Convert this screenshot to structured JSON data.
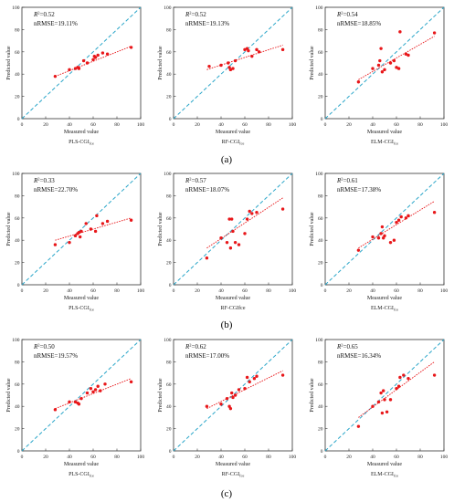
{
  "figure": {
    "rows": [
      {
        "label": "(a)"
      },
      {
        "label": "(b)"
      },
      {
        "label": "(c)"
      }
    ]
  },
  "colors": {
    "points": "#e8171a",
    "fit_line": "#e8171a",
    "one_to_one_line": "#2aa6c9",
    "axes": "#333333"
  },
  "chart_data": [
    {
      "type": "scatter",
      "xlabel": "Measured value",
      "ylabel": "Predicted value",
      "xlim": [
        0,
        100
      ],
      "ylim": [
        0,
        100
      ],
      "xticks": [
        0,
        20,
        40,
        60,
        80,
        100
      ],
      "yticks": [
        0,
        20,
        40,
        60,
        80,
        100
      ],
      "title_model": "PLS-CGI",
      "title_sub": "fce",
      "r2_prefix": "R",
      "r2_value": "=0.52",
      "nrmse": "nRMSE=19.11%",
      "fit": {
        "x": [
          28,
          92
        ],
        "y": [
          38,
          65
        ]
      },
      "points": [
        [
          28,
          38
        ],
        [
          40,
          44
        ],
        [
          45,
          45
        ],
        [
          47,
          46
        ],
        [
          48,
          45
        ],
        [
          52,
          52
        ],
        [
          55,
          50
        ],
        [
          60,
          53
        ],
        [
          61,
          56
        ],
        [
          62,
          55
        ],
        [
          64,
          57
        ],
        [
          68,
          59
        ],
        [
          72,
          58
        ],
        [
          92,
          64
        ]
      ]
    },
    {
      "type": "scatter",
      "xlabel": "Measured value",
      "ylabel": "Predicted value",
      "xlim": [
        0,
        100
      ],
      "ylim": [
        0,
        100
      ],
      "xticks": [
        0,
        20,
        40,
        60,
        80,
        100
      ],
      "yticks": [
        0,
        20,
        40,
        60,
        80,
        100
      ],
      "title_model": "RF-CGI",
      "title_sub": "fce",
      "r2_prefix": "R",
      "r2_value": "=0.52",
      "nrmse": "nRMSE=19.13%",
      "fit": {
        "x": [
          28,
          92
        ],
        "y": [
          44,
          66
        ]
      },
      "points": [
        [
          30,
          47
        ],
        [
          40,
          48
        ],
        [
          46,
          50
        ],
        [
          47,
          46
        ],
        [
          48,
          44
        ],
        [
          50,
          45
        ],
        [
          52,
          52
        ],
        [
          60,
          62
        ],
        [
          62,
          63
        ],
        [
          63,
          61
        ],
        [
          66,
          56
        ],
        [
          70,
          62
        ],
        [
          72,
          60
        ],
        [
          92,
          62
        ]
      ]
    },
    {
      "type": "scatter",
      "xlabel": "Measured value",
      "ylabel": "Predicted value",
      "xlim": [
        0,
        100
      ],
      "ylim": [
        0,
        100
      ],
      "xticks": [
        0,
        20,
        40,
        60,
        80,
        100
      ],
      "yticks": [
        0,
        20,
        40,
        60,
        80,
        100
      ],
      "title_model": "ELM-CGI",
      "title_sub": "fce",
      "r2_prefix": "R",
      "r2_value": "=0.54",
      "nrmse": "nRMSE=18.85%",
      "fit": {
        "x": [
          28,
          92
        ],
        "y": [
          35,
          74
        ]
      },
      "points": [
        [
          28,
          33
        ],
        [
          40,
          45
        ],
        [
          45,
          48
        ],
        [
          46,
          52
        ],
        [
          47,
          63
        ],
        [
          48,
          42
        ],
        [
          50,
          44
        ],
        [
          55,
          50
        ],
        [
          58,
          52
        ],
        [
          60,
          46
        ],
        [
          62,
          45
        ],
        [
          63,
          78
        ],
        [
          68,
          58
        ],
        [
          70,
          57
        ],
        [
          92,
          77
        ]
      ]
    },
    {
      "type": "scatter",
      "xlabel": "Measured value",
      "ylabel": "Predicted value",
      "xlim": [
        0,
        100
      ],
      "ylim": [
        0,
        100
      ],
      "xticks": [
        0,
        20,
        40,
        60,
        80,
        100
      ],
      "yticks": [
        0,
        20,
        40,
        60,
        80,
        100
      ],
      "title_model": "PLS-CGI",
      "title_sub": "fce",
      "r2_prefix": "R",
      "r2_value": "=0.33",
      "nrmse": "nRMSE=22.70%",
      "fit": {
        "x": [
          28,
          92
        ],
        "y": [
          40,
          60
        ]
      },
      "points": [
        [
          28,
          36
        ],
        [
          40,
          38
        ],
        [
          45,
          44
        ],
        [
          47,
          46
        ],
        [
          48,
          47
        ],
        [
          49,
          43
        ],
        [
          50,
          48
        ],
        [
          54,
          55
        ],
        [
          58,
          50
        ],
        [
          62,
          48
        ],
        [
          63,
          62
        ],
        [
          68,
          55
        ],
        [
          72,
          57
        ],
        [
          92,
          58
        ]
      ]
    },
    {
      "type": "scatter",
      "xlabel": "Measured value",
      "ylabel": "Predicted value",
      "xlim": [
        0,
        100
      ],
      "ylim": [
        0,
        100
      ],
      "xticks": [
        0,
        20,
        40,
        60,
        80,
        100
      ],
      "yticks": [
        0,
        20,
        40,
        60,
        80,
        100
      ],
      "title_model": "RF-CGIfce",
      "title_sub": "",
      "r2_prefix": "R",
      "r2_value": "=0.57",
      "nrmse": "nRMSE=18.07%",
      "fit": {
        "x": [
          28,
          92
        ],
        "y": [
          33,
          78
        ]
      },
      "points": [
        [
          28,
          24
        ],
        [
          40,
          42
        ],
        [
          45,
          38
        ],
        [
          47,
          59
        ],
        [
          48,
          33
        ],
        [
          49,
          59
        ],
        [
          50,
          48
        ],
        [
          52,
          38
        ],
        [
          55,
          36
        ],
        [
          60,
          46
        ],
        [
          62,
          59
        ],
        [
          64,
          66
        ],
        [
          66,
          64
        ],
        [
          70,
          65
        ],
        [
          92,
          68
        ]
      ]
    },
    {
      "type": "scatter",
      "xlabel": "Measured value",
      "ylabel": "Predicted value",
      "xlim": [
        0,
        100
      ],
      "ylim": [
        0,
        100
      ],
      "xticks": [
        0,
        20,
        40,
        60,
        80,
        100
      ],
      "yticks": [
        0,
        20,
        40,
        60,
        80,
        100
      ],
      "title_model": "ELM-CGI",
      "title_sub": "fce",
      "r2_prefix": "R",
      "r2_value": "=0.61",
      "nrmse": "nRMSE=17.38%",
      "fit": {
        "x": [
          28,
          92
        ],
        "y": [
          33,
          75
        ]
      },
      "points": [
        [
          28,
          31
        ],
        [
          40,
          43
        ],
        [
          45,
          42
        ],
        [
          47,
          46
        ],
        [
          48,
          52
        ],
        [
          49,
          42
        ],
        [
          50,
          44
        ],
        [
          55,
          38
        ],
        [
          58,
          40
        ],
        [
          60,
          56
        ],
        [
          62,
          58
        ],
        [
          64,
          61
        ],
        [
          68,
          60
        ],
        [
          70,
          62
        ],
        [
          92,
          65
        ]
      ]
    },
    {
      "type": "scatter",
      "xlabel": "Measured value",
      "ylabel": "Predicted value",
      "xlim": [
        0,
        100
      ],
      "ylim": [
        0,
        100
      ],
      "xticks": [
        0,
        20,
        40,
        60,
        80,
        100
      ],
      "yticks": [
        0,
        20,
        40,
        60,
        80,
        100
      ],
      "title_model": "PLS-CGI",
      "title_sub": "fce",
      "r2_prefix": "R",
      "r2_value": "=0.50",
      "nrmse": "nRMSE=19.57%",
      "fit": {
        "x": [
          28,
          92
        ],
        "y": [
          38,
          65
        ]
      },
      "points": [
        [
          28,
          37
        ],
        [
          40,
          44
        ],
        [
          45,
          44
        ],
        [
          47,
          43
        ],
        [
          48,
          42
        ],
        [
          50,
          47
        ],
        [
          55,
          52
        ],
        [
          58,
          56
        ],
        [
          60,
          53
        ],
        [
          62,
          55
        ],
        [
          64,
          58
        ],
        [
          66,
          54
        ],
        [
          70,
          60
        ],
        [
          92,
          62
        ]
      ]
    },
    {
      "type": "scatter",
      "xlabel": "Measured value",
      "ylabel": "Predicted value",
      "xlim": [
        0,
        100
      ],
      "ylim": [
        0,
        100
      ],
      "xticks": [
        0,
        20,
        40,
        60,
        80,
        100
      ],
      "yticks": [
        0,
        20,
        40,
        60,
        80,
        100
      ],
      "title_model": "RF-CGI",
      "title_sub": "fce",
      "r2_prefix": "R",
      "r2_value": "=0.62",
      "nrmse": "nRMSE=17.00%",
      "fit": {
        "x": [
          28,
          92
        ],
        "y": [
          38,
          72
        ]
      },
      "points": [
        [
          28,
          40
        ],
        [
          40,
          42
        ],
        [
          45,
          47
        ],
        [
          47,
          40
        ],
        [
          48,
          38
        ],
        [
          49,
          52
        ],
        [
          50,
          48
        ],
        [
          52,
          50
        ],
        [
          55,
          55
        ],
        [
          60,
          56
        ],
        [
          62,
          66
        ],
        [
          64,
          62
        ],
        [
          68,
          65
        ],
        [
          70,
          67
        ],
        [
          92,
          68
        ]
      ]
    },
    {
      "type": "scatter",
      "xlabel": "Measured value",
      "ylabel": "Predicted value",
      "xlim": [
        0,
        100
      ],
      "ylim": [
        0,
        100
      ],
      "xticks": [
        0,
        20,
        40,
        60,
        80,
        100
      ],
      "yticks": [
        0,
        20,
        40,
        60,
        80,
        100
      ],
      "title_model": "ELM-CGI",
      "title_sub": "fce",
      "r2_prefix": "R",
      "r2_value": "=0.65",
      "nrmse": "nRMSE=16.34%",
      "fit": {
        "x": [
          28,
          92
        ],
        "y": [
          30,
          80
        ]
      },
      "points": [
        [
          28,
          22
        ],
        [
          40,
          40
        ],
        [
          45,
          44
        ],
        [
          47,
          52
        ],
        [
          48,
          34
        ],
        [
          49,
          54
        ],
        [
          50,
          46
        ],
        [
          52,
          35
        ],
        [
          55,
          46
        ],
        [
          60,
          56
        ],
        [
          62,
          58
        ],
        [
          63,
          66
        ],
        [
          66,
          68
        ],
        [
          70,
          65
        ],
        [
          92,
          68
        ]
      ]
    }
  ]
}
